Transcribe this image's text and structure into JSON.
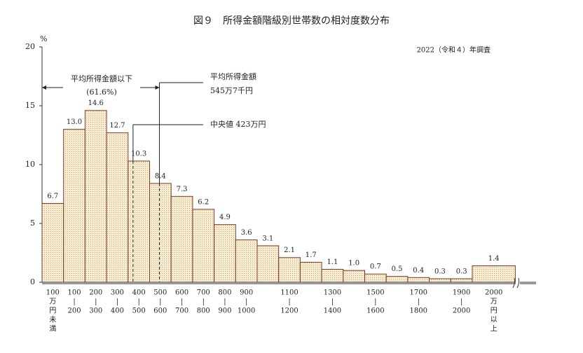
{
  "chart_data": {
    "type": "bar",
    "title": "図９　所得金額階級別世帯数の相対度数分布",
    "note": "2022（令和４）年調査",
    "y_unit": "%",
    "categories": [
      [
        "100",
        "万",
        "円",
        "未",
        "満"
      ],
      [
        "100",
        "|",
        "200"
      ],
      [
        "200",
        "|",
        "300"
      ],
      [
        "300",
        "|",
        "400"
      ],
      [
        "400",
        "|",
        "500"
      ],
      [
        "500",
        "|",
        "600"
      ],
      [
        "600",
        "|",
        "700"
      ],
      [
        "700",
        "|",
        "800"
      ],
      [
        "800",
        "|",
        "900"
      ],
      [
        "900",
        "|",
        "1000"
      ],
      null,
      [
        "1100",
        "|",
        "1200"
      ],
      null,
      [
        "1300",
        "|",
        "1400"
      ],
      null,
      [
        "1500",
        "|",
        "1600"
      ],
      null,
      [
        "1700",
        "|",
        "1800"
      ],
      null,
      [
        "1900",
        "|",
        "2000"
      ],
      [
        "2000",
        "万",
        "円",
        "以",
        "上"
      ]
    ],
    "values": [
      6.7,
      13.0,
      14.6,
      12.7,
      10.3,
      8.4,
      7.3,
      6.2,
      4.9,
      3.6,
      3.1,
      2.1,
      1.7,
      1.1,
      1.0,
      0.7,
      0.5,
      0.4,
      0.3,
      0.3,
      1.4
    ],
    "value_labels": [
      "6.7",
      "13.0",
      "14.6",
      "12.7",
      "10.3",
      "8.4",
      "7.3",
      "6.2",
      "4.9",
      "3.6",
      "3.1",
      "2.1",
      "1.7",
      "1.1",
      "1.0",
      "0.7",
      "0.5",
      "0.4",
      "0.3",
      "0.3",
      "1.4"
    ],
    "color": "#f4e7c9",
    "edge_color": "#7a3b1e",
    "ylim": [
      0,
      20
    ],
    "yticks": [
      0,
      5,
      10,
      15,
      20
    ],
    "below_mean": {
      "label": "平均所得金額以下",
      "share": "(61.6%)"
    },
    "markers": [
      {
        "name": "mean",
        "x": 545.7,
        "label": [
          "平均所得金額",
          "545万7千円"
        ]
      },
      {
        "name": "median",
        "x": 423,
        "label": [
          "中央値 423万円"
        ]
      }
    ]
  }
}
